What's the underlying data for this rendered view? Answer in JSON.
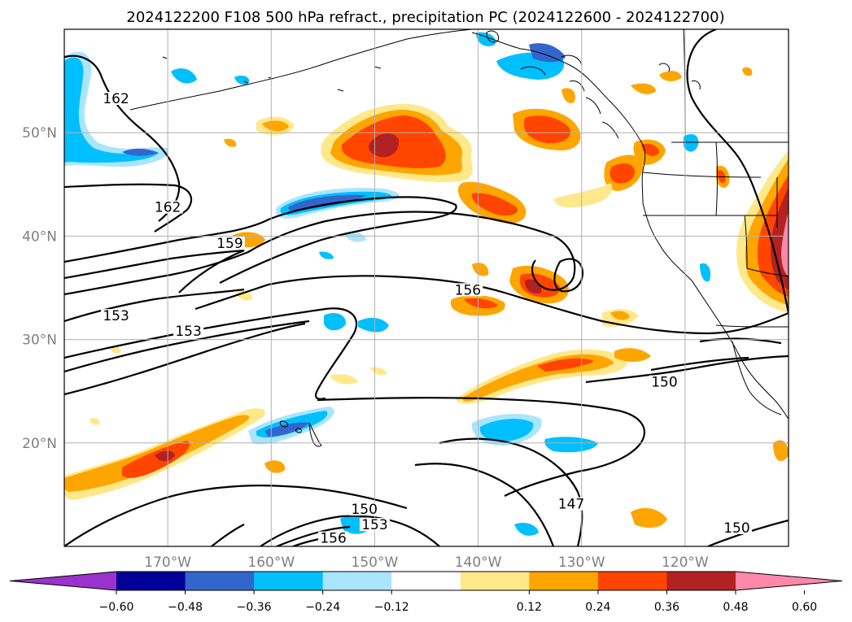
{
  "title": "2024122200 F108 500 hPa refract., precipitation PC (2024122600 - 2024122700)",
  "map": {
    "lat_ticks": [
      {
        "value": 50,
        "label": "50°N"
      },
      {
        "value": 40,
        "label": "40°N"
      },
      {
        "value": 30,
        "label": "30°N"
      },
      {
        "value": 20,
        "label": "20°N"
      }
    ],
    "lon_ticks": [
      {
        "value": -170,
        "label": "170°W"
      },
      {
        "value": -160,
        "label": "160°W"
      },
      {
        "value": -150,
        "label": "150°W"
      },
      {
        "value": -140,
        "label": "140°W"
      },
      {
        "value": -130,
        "label": "130°W"
      },
      {
        "value": -120,
        "label": "120°W"
      }
    ],
    "contour_labels": [
      {
        "text": "162",
        "lon": -175,
        "lat": 53
      },
      {
        "text": "162",
        "lon": -170,
        "lat": 42.5
      },
      {
        "text": "159",
        "lon": -164,
        "lat": 39
      },
      {
        "text": "153",
        "lon": -175,
        "lat": 32
      },
      {
        "text": "153",
        "lon": -168,
        "lat": 30.5
      },
      {
        "text": "156",
        "lon": -141,
        "lat": 34.5
      },
      {
        "text": "150",
        "lon": -122,
        "lat": 25.6
      },
      {
        "text": "147",
        "lon": -131,
        "lat": 13.8
      },
      {
        "text": "150",
        "lon": -151,
        "lat": 13.3
      },
      {
        "text": "153",
        "lon": -150,
        "lat": 11.8
      },
      {
        "text": "156",
        "lon": -154,
        "lat": 10.5
      },
      {
        "text": "150",
        "lon": -115,
        "lat": 11.5
      }
    ]
  },
  "colorbar": {
    "colors": [
      "#9933cc",
      "#000099",
      "#3366cc",
      "#00bfff",
      "#aae5ff",
      "#ffffff",
      "#ffe88a",
      "#ffa500",
      "#ff4500",
      "#b22222",
      "#ff88aa"
    ],
    "ticks": [
      "−0.60",
      "−0.48",
      "−0.36",
      "−0.24",
      "−0.12",
      "0.12",
      "0.24",
      "0.36",
      "0.48",
      "0.60"
    ]
  }
}
